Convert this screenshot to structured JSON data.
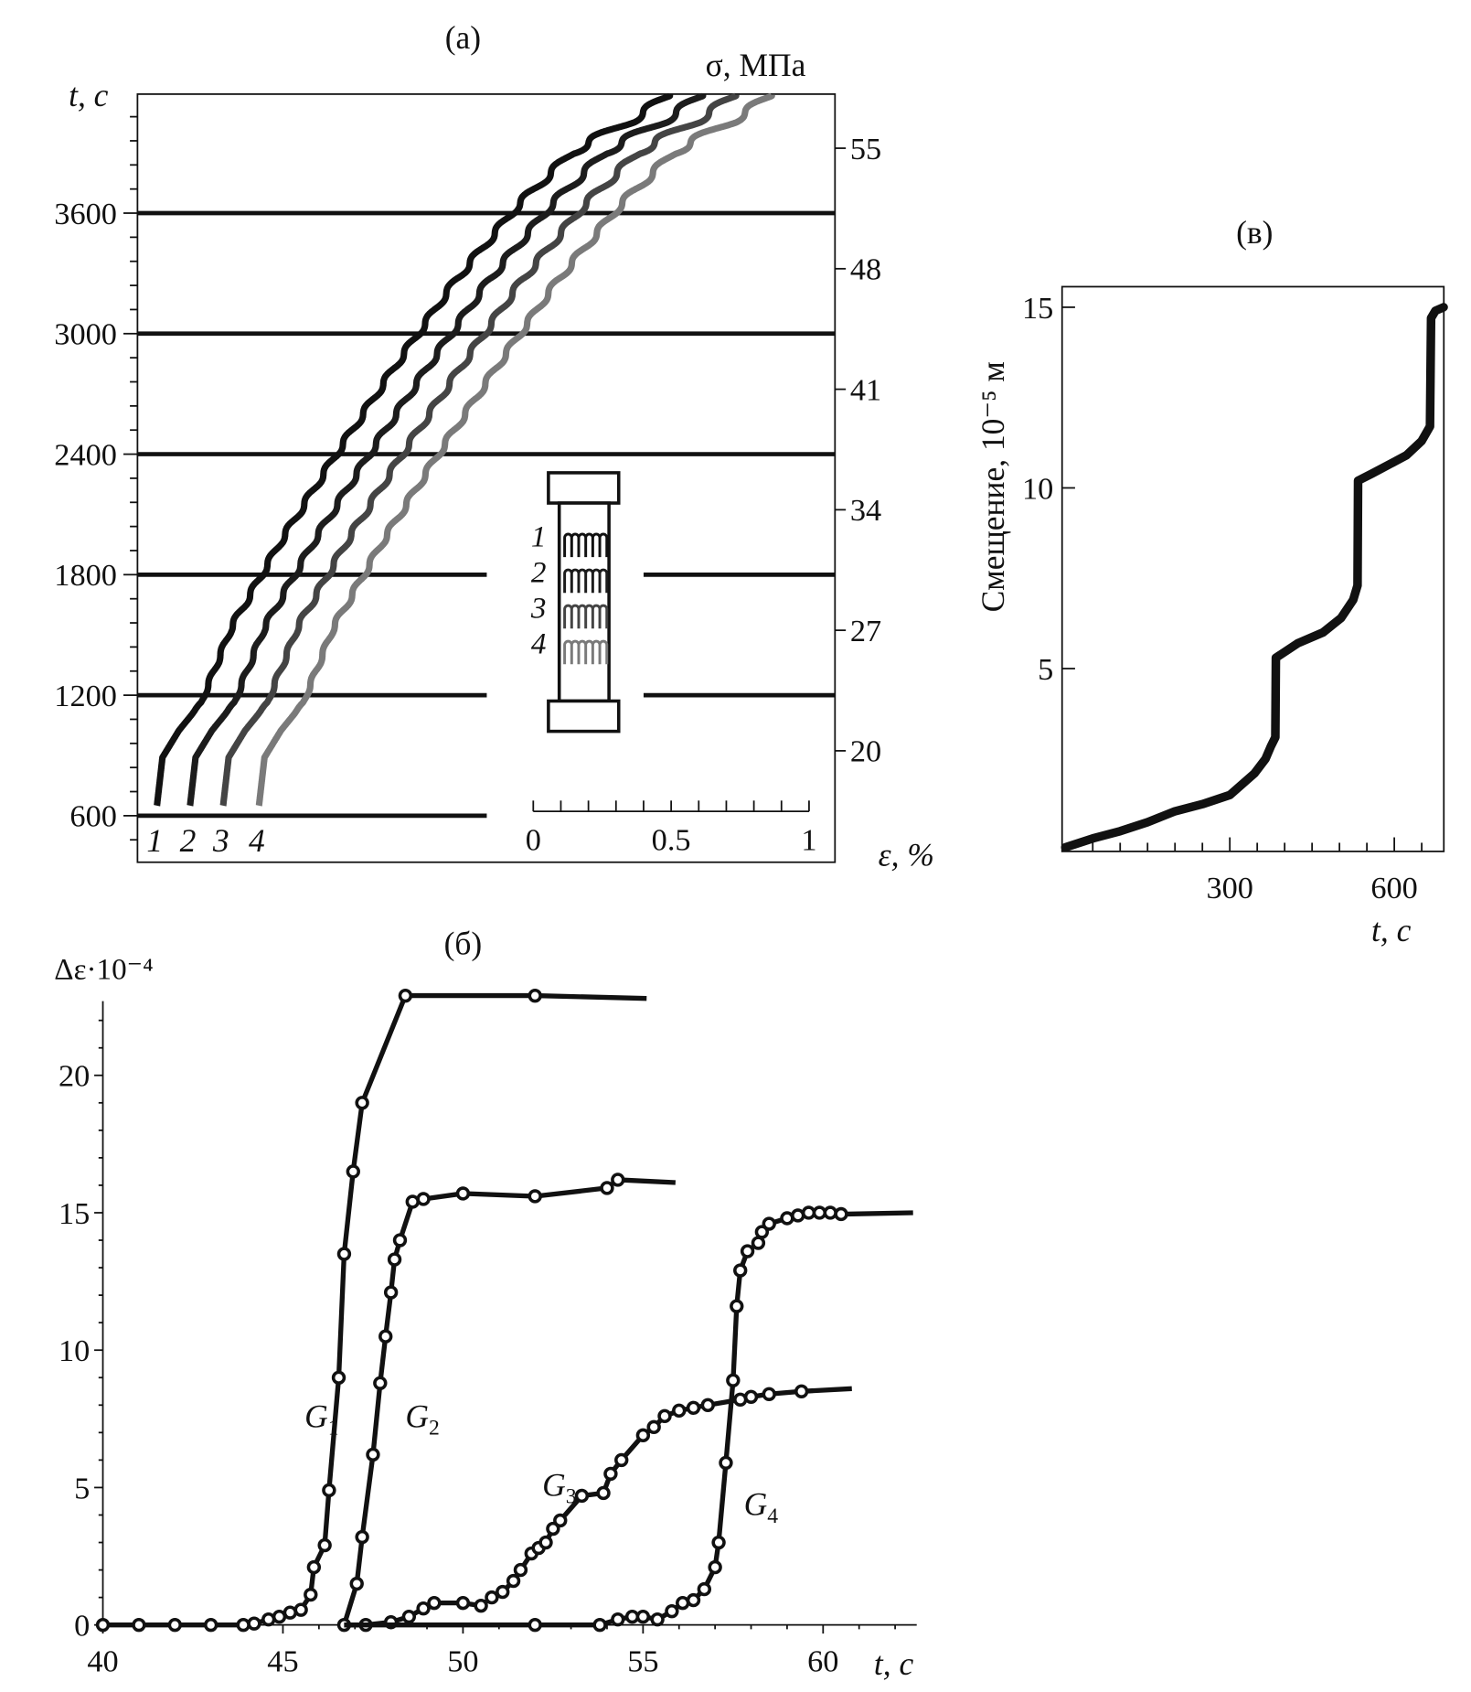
{
  "chart_data": [
    {
      "panel": "(a)",
      "type": "line",
      "y_left_label": "t, c",
      "y_left_ticks": [
        600,
        1200,
        1800,
        2400,
        3000,
        3600
      ],
      "y_left_range": [
        370,
        4190
      ],
      "y_right_label": "σ, МПа",
      "y_right_ticks": [
        20,
        27,
        34,
        41,
        48,
        55
      ],
      "strain_scale": {
        "label": "ε, %",
        "ticks": [
          "0",
          "0.5",
          "1"
        ],
        "range": [
          0,
          1
        ]
      },
      "grid_lines_t": [
        600,
        1200,
        1800,
        2400,
        3000,
        3600
      ],
      "inset_labels": [
        "1",
        "2",
        "3",
        "4"
      ],
      "series": [
        {
          "name": "1",
          "color": "#111111",
          "eps_offset": 0.0
        },
        {
          "name": "2",
          "color": "#1c1c1c",
          "eps_offset": 0.12
        },
        {
          "name": "3",
          "color": "#444444",
          "eps_offset": 0.24
        },
        {
          "name": "4",
          "color": "#7a7a7a",
          "eps_offset": 0.37
        }
      ],
      "trend_points_eps_t": [
        [
          0,
          650
        ],
        [
          0.02,
          890
        ],
        [
          0.08,
          1025
        ],
        [
          0.16,
          1160
        ],
        [
          0.27,
          1537
        ],
        [
          0.45,
          1968
        ],
        [
          0.65,
          2400
        ],
        [
          0.86,
          2830
        ],
        [
          1.08,
          3260
        ],
        [
          1.31,
          3640
        ],
        [
          1.51,
          3910
        ],
        [
          1.73,
          4070
        ],
        [
          1.86,
          4190
        ]
      ],
      "step_period_s": 150
    },
    {
      "panel": "(в)",
      "type": "line",
      "ylabel": "Смещение, 10⁻⁵ м",
      "xlabel": "t, c",
      "x_ticks": [
        300,
        600
      ],
      "y_ticks": [
        5,
        10,
        15
      ],
      "xlim": [
        0,
        690
      ],
      "ylim": [
        0,
        15.6
      ],
      "points": [
        [
          0,
          0.05
        ],
        [
          50,
          0.3
        ],
        [
          100,
          0.5
        ],
        [
          150,
          0.75
        ],
        [
          200,
          1.05
        ],
        [
          250,
          1.25
        ],
        [
          300,
          1.5
        ],
        [
          345,
          2.1
        ],
        [
          365,
          2.5
        ],
        [
          375,
          2.85
        ],
        [
          383,
          3.1
        ],
        [
          384,
          5.3
        ],
        [
          424,
          5.7
        ],
        [
          470,
          6.0
        ],
        [
          503,
          6.4
        ],
        [
          525,
          6.9
        ],
        [
          533,
          7.3
        ],
        [
          534,
          10.2
        ],
        [
          560,
          10.4
        ],
        [
          622,
          10.9
        ],
        [
          650,
          11.3
        ],
        [
          665,
          11.7
        ],
        [
          667,
          14.7
        ],
        [
          675,
          14.9
        ],
        [
          690,
          15.0
        ]
      ]
    },
    {
      "panel": "(б)",
      "type": "line",
      "ylabel": "Δε·10⁻⁴",
      "xlabel": "t, c",
      "x_ticks": [
        40,
        45,
        50,
        55,
        60
      ],
      "y_ticks": [
        0,
        5,
        10,
        15,
        20
      ],
      "xlim": [
        40,
        62.6
      ],
      "ylim": [
        0,
        22.7
      ],
      "series": [
        {
          "name": "G",
          "sub": "1",
          "label_at": [
            45.6,
            7.2
          ],
          "line_start": [
            40,
            0
          ],
          "line_end": [
            55.1,
            22.8
          ],
          "points": [
            [
              40,
              0
            ],
            [
              41,
              0
            ],
            [
              42,
              0
            ],
            [
              43,
              0
            ],
            [
              43.9,
              0
            ],
            [
              44.2,
              0.05
            ],
            [
              44.6,
              0.2
            ],
            [
              44.9,
              0.3
            ],
            [
              45.2,
              0.45
            ],
            [
              45.5,
              0.55
            ],
            [
              45.77,
              1.1
            ],
            [
              45.86,
              2.1
            ],
            [
              46.16,
              2.9
            ],
            [
              46.28,
              4.9
            ],
            [
              46.55,
              9.0
            ],
            [
              46.7,
              13.5
            ],
            [
              46.95,
              16.5
            ],
            [
              47.2,
              19.0
            ],
            [
              48.4,
              22.9
            ],
            [
              52.0,
              22.9
            ]
          ]
        },
        {
          "name": "G",
          "sub": "2",
          "label_at": [
            48.4,
            7.2
          ],
          "line_start": [
            46.7,
            0
          ],
          "line_end": [
            55.9,
            16.1
          ],
          "points": [
            [
              46.7,
              0
            ],
            [
              47.05,
              1.5
            ],
            [
              47.2,
              3.2
            ],
            [
              47.5,
              6.2
            ],
            [
              47.7,
              8.8
            ],
            [
              47.85,
              10.5
            ],
            [
              48.0,
              12.1
            ],
            [
              48.1,
              13.3
            ],
            [
              48.25,
              14.0
            ],
            [
              48.6,
              15.4
            ],
            [
              48.9,
              15.5
            ],
            [
              50.0,
              15.7
            ],
            [
              52.0,
              15.6
            ],
            [
              54.0,
              15.9
            ],
            [
              54.3,
              16.2
            ]
          ]
        },
        {
          "name": "G",
          "sub": "3",
          "label_at": [
            52.2,
            4.7
          ],
          "line_start": [
            46.7,
            0
          ],
          "line_end": [
            60.8,
            8.6
          ],
          "points": [
            [
              47.3,
              0
            ],
            [
              48.0,
              0.1
            ],
            [
              48.5,
              0.3
            ],
            [
              48.9,
              0.6
            ],
            [
              49.2,
              0.8
            ],
            [
              50.0,
              0.8
            ],
            [
              50.5,
              0.7
            ],
            [
              50.8,
              1.0
            ],
            [
              51.1,
              1.2
            ],
            [
              51.4,
              1.6
            ],
            [
              51.6,
              2.0
            ],
            [
              51.9,
              2.6
            ],
            [
              52.1,
              2.8
            ],
            [
              52.3,
              3.0
            ],
            [
              52.5,
              3.5
            ],
            [
              52.7,
              3.8
            ],
            [
              53.3,
              4.7
            ],
            [
              53.9,
              4.8
            ],
            [
              54.1,
              5.5
            ],
            [
              54.4,
              6.0
            ],
            [
              55.0,
              6.9
            ],
            [
              55.3,
              7.2
            ],
            [
              55.6,
              7.6
            ],
            [
              56.0,
              7.8
            ],
            [
              56.4,
              7.9
            ],
            [
              56.8,
              8.0
            ],
            [
              57.7,
              8.2
            ],
            [
              58.0,
              8.3
            ],
            [
              58.5,
              8.4
            ],
            [
              59.4,
              8.5
            ]
          ]
        },
        {
          "name": "G",
          "sub": "4",
          "label_at": [
            57.8,
            4.0
          ],
          "line_start": [
            46.7,
            0
          ],
          "line_end": [
            62.5,
            15.0
          ],
          "points": [
            [
              52.0,
              0
            ],
            [
              53.8,
              0
            ],
            [
              54.3,
              0.2
            ],
            [
              54.7,
              0.3
            ],
            [
              55.0,
              0.3
            ],
            [
              55.4,
              0.2
            ],
            [
              55.8,
              0.5
            ],
            [
              56.1,
              0.8
            ],
            [
              56.4,
              0.9
            ],
            [
              56.7,
              1.3
            ],
            [
              57.0,
              2.1
            ],
            [
              57.1,
              3.0
            ],
            [
              57.3,
              5.9
            ],
            [
              57.5,
              8.9
            ],
            [
              57.6,
              11.6
            ],
            [
              57.7,
              12.9
            ],
            [
              57.9,
              13.6
            ],
            [
              58.2,
              13.9
            ],
            [
              58.3,
              14.3
            ],
            [
              58.5,
              14.6
            ],
            [
              59.0,
              14.8
            ],
            [
              59.3,
              14.9
            ],
            [
              59.6,
              15.0
            ],
            [
              59.9,
              15.0
            ],
            [
              60.2,
              15.0
            ],
            [
              60.5,
              14.95
            ]
          ]
        }
      ]
    }
  ]
}
